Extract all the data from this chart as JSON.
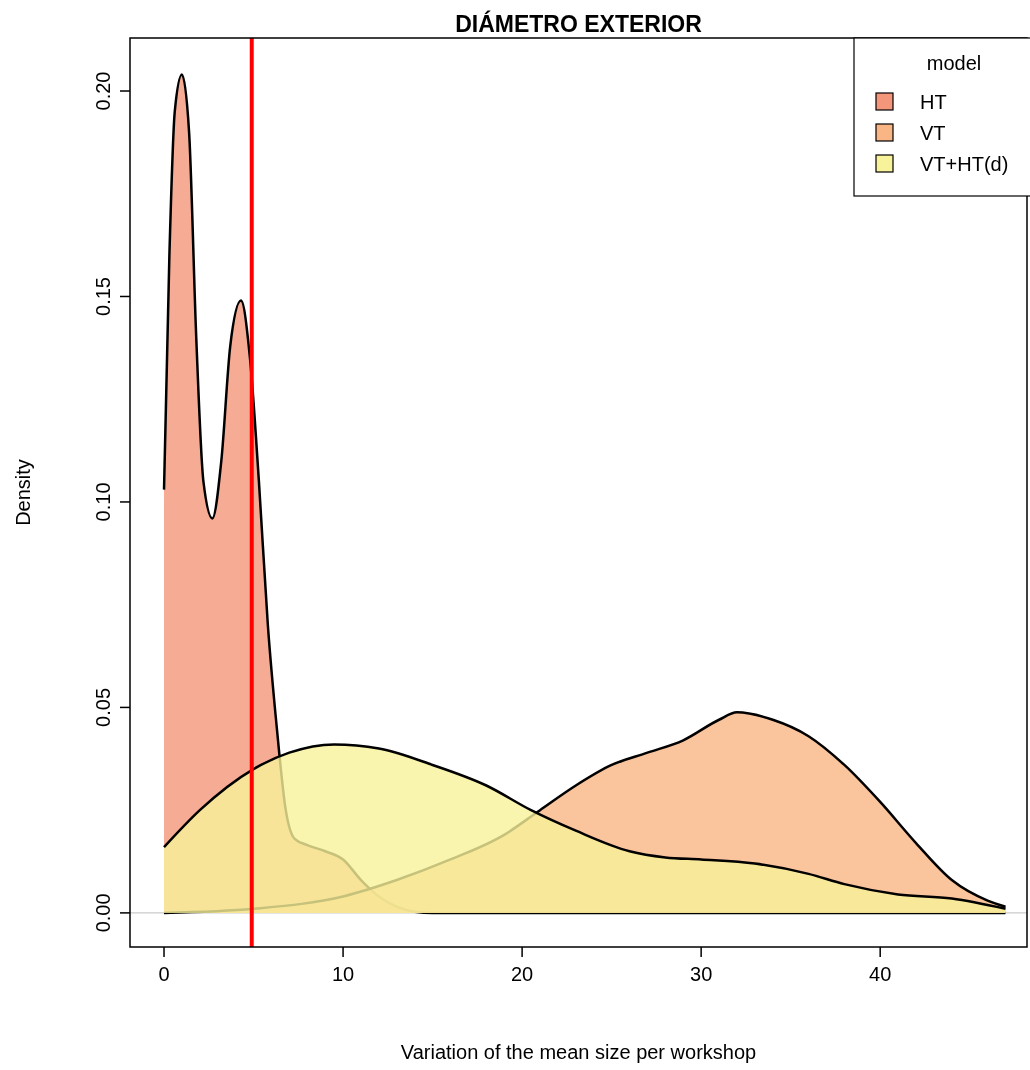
{
  "chart_data": {
    "type": "area",
    "title": "DIÁMETRO EXTERIOR",
    "xlabel": "Variation of the mean size per workshop",
    "ylabel": "Density",
    "legend_title": "model",
    "legend": "top right",
    "grid": false,
    "marker": "none",
    "xlim": [
      -1.9,
      48.2
    ],
    "ylim": [
      -0.0083,
      0.2129
    ],
    "xticks": [
      0,
      10,
      20,
      30,
      40
    ],
    "yticks": [
      {
        "value": 0,
        "label": "0.00"
      },
      {
        "value": 0.05,
        "label": "0.05"
      },
      {
        "value": 0.1,
        "label": "0.10"
      },
      {
        "value": 0.15,
        "label": "0.15"
      },
      {
        "value": 0.2,
        "label": "0.20"
      }
    ],
    "ref_lines": [
      {
        "axis": "y",
        "value": 0,
        "color": "#bebebe"
      },
      {
        "axis": "x",
        "value": 4.9,
        "color": "#ff0000"
      }
    ],
    "series": [
      {
        "name": "HT",
        "color": "#f4967a",
        "x": [
          0,
          0.3,
          0.6,
          1,
          1.4,
          1.8,
          2.2,
          2.7,
          3.2,
          3.7,
          4.3,
          4.8,
          5.3,
          5.8,
          6.3,
          6.8,
          7.3,
          8,
          9,
          10,
          11,
          12,
          13,
          14,
          15,
          47
        ],
        "values": [
          0.103,
          0.16,
          0.195,
          0.204,
          0.19,
          0.14,
          0.105,
          0.096,
          0.11,
          0.138,
          0.149,
          0.135,
          0.105,
          0.07,
          0.045,
          0.025,
          0.018,
          0.0165,
          0.015,
          0.013,
          0.008,
          0.004,
          0.0015,
          0.0003,
          0,
          0
        ]
      },
      {
        "name": "VT",
        "color": "#f9b584",
        "x": [
          0,
          5,
          10,
          13,
          16,
          19,
          21,
          23,
          25,
          27,
          29,
          31,
          32,
          34,
          36,
          38,
          40,
          42,
          44,
          46,
          47
        ],
        "values": [
          0,
          0.001,
          0.004,
          0.008,
          0.013,
          0.019,
          0.025,
          0.031,
          0.036,
          0.039,
          0.042,
          0.047,
          0.0488,
          0.047,
          0.043,
          0.036,
          0.027,
          0.017,
          0.008,
          0.003,
          0.0015
        ]
      },
      {
        "name": "VT+HT(d)",
        "color": "#f8f29a",
        "x": [
          0,
          2,
          5,
          7,
          9.5,
          12,
          15,
          18,
          20.5,
          23,
          26,
          28,
          30,
          33,
          36,
          38,
          41,
          44,
          47
        ],
        "values": [
          0.016,
          0.025,
          0.035,
          0.039,
          0.041,
          0.04,
          0.036,
          0.031,
          0.025,
          0.02,
          0.015,
          0.0135,
          0.013,
          0.012,
          0.0095,
          0.007,
          0.0045,
          0.0035,
          0.001
        ]
      }
    ]
  }
}
